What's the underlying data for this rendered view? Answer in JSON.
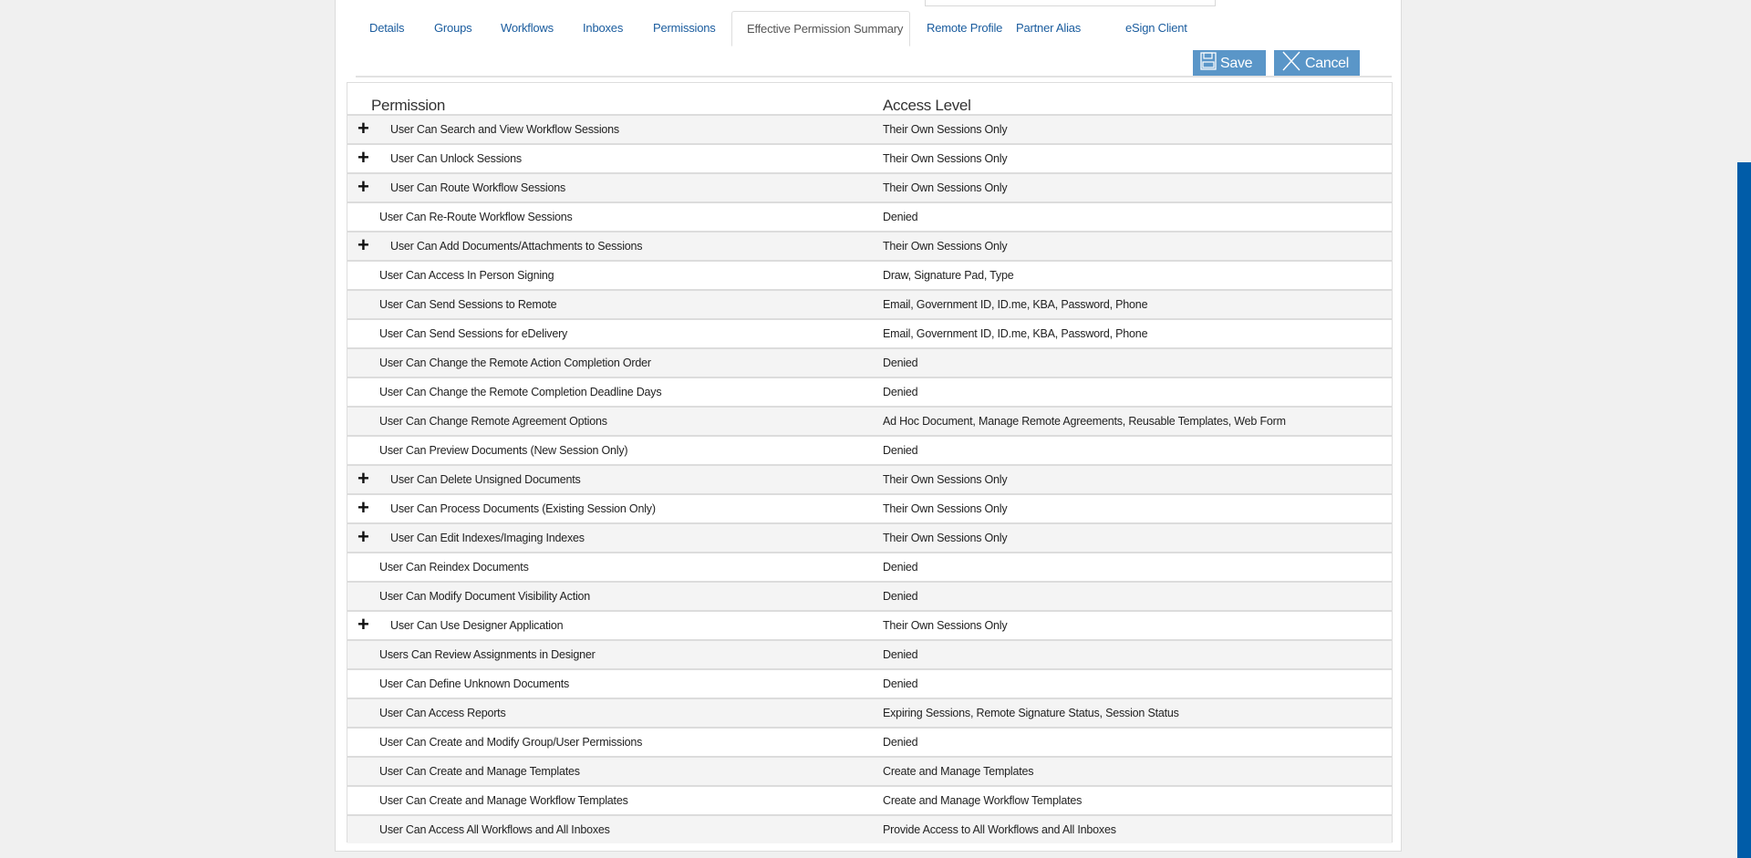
{
  "tabs": [
    {
      "label": "Details",
      "active": false
    },
    {
      "label": "Groups",
      "active": false
    },
    {
      "label": "Workflows",
      "active": false
    },
    {
      "label": "Inboxes",
      "active": false
    },
    {
      "label": "Permissions",
      "active": false
    },
    {
      "label": "Effective Permission Summary",
      "active": true
    },
    {
      "label": "Remote Profile",
      "active": false
    },
    {
      "label": "Partner Alias",
      "active": false
    },
    {
      "label": "eSign Client",
      "active": false
    }
  ],
  "toolbar": {
    "save_label": "Save",
    "cancel_label": "Cancel",
    "save_icon": "floppy-disk-icon",
    "cancel_icon": "x-icon"
  },
  "table": {
    "headers": {
      "permission": "Permission",
      "access": "Access Level"
    },
    "rows": [
      {
        "permission": "User Can Search and View Workflow Sessions",
        "access": "Their Own Sessions Only",
        "expandable": true
      },
      {
        "permission": "User Can Unlock Sessions",
        "access": "Their Own Sessions Only",
        "expandable": true
      },
      {
        "permission": "User Can Route Workflow Sessions",
        "access": "Their Own Sessions Only",
        "expandable": true
      },
      {
        "permission": "User Can Re-Route Workflow Sessions",
        "access": "Denied",
        "expandable": false
      },
      {
        "permission": "User Can Add Documents/Attachments to Sessions",
        "access": "Their Own Sessions Only",
        "expandable": true
      },
      {
        "permission": "User Can Access In Person Signing",
        "access": "Draw, Signature Pad, Type",
        "expandable": false
      },
      {
        "permission": "User Can Send Sessions to Remote",
        "access": "Email, Government ID, ID.me, KBA, Password, Phone",
        "expandable": false
      },
      {
        "permission": "User Can Send Sessions for eDelivery",
        "access": "Email, Government ID, ID.me, KBA, Password, Phone",
        "expandable": false
      },
      {
        "permission": "User Can Change the Remote Action Completion Order",
        "access": "Denied",
        "expandable": false
      },
      {
        "permission": "User Can Change the Remote Completion Deadline Days",
        "access": "Denied",
        "expandable": false
      },
      {
        "permission": "User Can Change Remote Agreement Options",
        "access": "Ad Hoc Document, Manage Remote Agreements, Reusable Templates, Web Form",
        "expandable": false
      },
      {
        "permission": "User Can Preview Documents (New Session Only)",
        "access": "Denied",
        "expandable": false
      },
      {
        "permission": "User Can Delete Unsigned Documents",
        "access": "Their Own Sessions Only",
        "expandable": true
      },
      {
        "permission": "User Can Process Documents (Existing Session Only)",
        "access": "Their Own Sessions Only",
        "expandable": true
      },
      {
        "permission": "User Can Edit Indexes/Imaging Indexes",
        "access": "Their Own Sessions Only",
        "expandable": true
      },
      {
        "permission": "User Can Reindex Documents",
        "access": "Denied",
        "expandable": false
      },
      {
        "permission": "User Can Modify Document Visibility Action",
        "access": "Denied",
        "expandable": false
      },
      {
        "permission": "User Can Use Designer Application",
        "access": "Their Own Sessions Only",
        "expandable": true
      },
      {
        "permission": "Users Can Review Assignments in Designer",
        "access": "Denied",
        "expandable": false
      },
      {
        "permission": "User Can Define Unknown Documents",
        "access": "Denied",
        "expandable": false
      },
      {
        "permission": "User Can Access Reports",
        "access": "Expiring Sessions, Remote Signature Status, Session Status",
        "expandable": false
      },
      {
        "permission": "User Can Create and Modify Group/User Permissions",
        "access": "Denied",
        "expandable": false
      },
      {
        "permission": "User Can Create and Manage Templates",
        "access": "Create and Manage Templates",
        "expandable": false
      },
      {
        "permission": "User Can Create and Manage Workflow Templates",
        "access": "Create and Manage Workflow Templates",
        "expandable": false
      },
      {
        "permission": "User Can Access All Workflows and All Inboxes",
        "access": "Provide Access to All Workflows and All Inboxes",
        "expandable": false
      }
    ]
  },
  "colors": {
    "accent": "#5a96c8",
    "link": "#1a5c9e",
    "scrollbar": "#005ca8",
    "row_alt": "#f4f4f4"
  }
}
